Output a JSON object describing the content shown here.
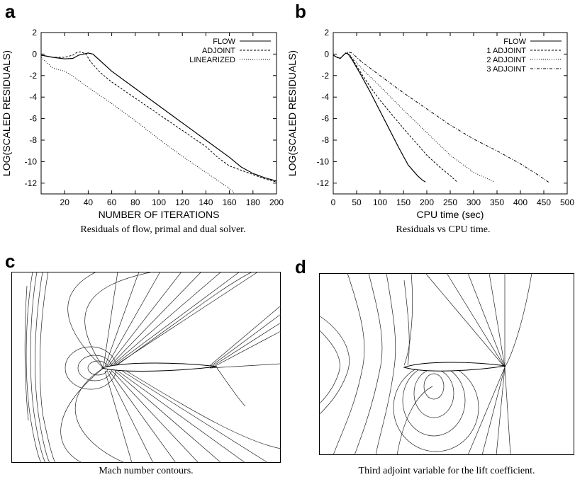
{
  "panels": {
    "a": {
      "letter": "a",
      "caption": "Residuals of flow, primal and dual solver."
    },
    "b": {
      "letter": "b",
      "caption": "Residuals vs CPU time."
    },
    "c": {
      "letter": "c",
      "caption": "Mach number contours."
    },
    "d": {
      "letter": "d",
      "caption": "Third adjoint variable for the lift coefficient."
    }
  },
  "chart_data": [
    {
      "type": "line",
      "xlabel": "NUMBER OF ITERATIONS",
      "ylabel": "LOG(SCALED RESIDUALS)",
      "xlim": [
        0,
        200
      ],
      "ylim": [
        -13,
        2
      ],
      "xticks": [
        20,
        40,
        60,
        80,
        100,
        120,
        140,
        160,
        180,
        200
      ],
      "yticks": [
        2,
        0,
        -2,
        -4,
        -6,
        -8,
        -10,
        -12
      ],
      "legend_position": "top-right",
      "series": [
        {
          "name": "FLOW",
          "style": "solid",
          "x": [
            0,
            10,
            20,
            27,
            32,
            36,
            40,
            44,
            48,
            55,
            60,
            80,
            100,
            120,
            140,
            160,
            170,
            180,
            190,
            200
          ],
          "y": [
            -0.1,
            -0.3,
            -0.45,
            -0.4,
            -0.1,
            0.0,
            0.1,
            0.0,
            -0.4,
            -1.1,
            -1.6,
            -3.2,
            -4.8,
            -6.4,
            -8.0,
            -9.6,
            -10.5,
            -11.1,
            -11.5,
            -11.8
          ]
        },
        {
          "name": "ADJOINT",
          "style": "dashed",
          "x": [
            0,
            10,
            20,
            27,
            31,
            34,
            38,
            42,
            50,
            60,
            80,
            100,
            120,
            140,
            150,
            160,
            170,
            180,
            190,
            200
          ],
          "y": [
            -0.1,
            -0.3,
            -0.3,
            -0.1,
            0.2,
            0.2,
            0.0,
            -0.7,
            -1.7,
            -2.6,
            -4.1,
            -5.6,
            -7.1,
            -8.6,
            -9.6,
            -10.4,
            -10.8,
            -11.2,
            -11.6,
            -11.9
          ]
        },
        {
          "name": "LINEARIZED",
          "style": "dotted",
          "x": [
            0,
            5,
            10,
            20,
            25,
            30,
            40,
            60,
            80,
            100,
            120,
            140,
            160,
            165
          ],
          "y": [
            -0.3,
            -0.8,
            -1.3,
            -1.6,
            -1.9,
            -2.3,
            -3.1,
            -4.6,
            -6.2,
            -7.9,
            -9.5,
            -11.0,
            -12.5,
            -13.0
          ]
        }
      ]
    },
    {
      "type": "line",
      "xlabel": "CPU time (sec)",
      "ylabel": "LOG(SCALED RESIDUALS)",
      "xlim": [
        0,
        500
      ],
      "ylim": [
        -13,
        2
      ],
      "xticks": [
        0,
        50,
        100,
        150,
        200,
        250,
        300,
        350,
        400,
        450,
        500
      ],
      "yticks": [
        2,
        0,
        -2,
        -4,
        -6,
        -8,
        -10,
        -12
      ],
      "legend_position": "top-right",
      "series": [
        {
          "name": "FLOW",
          "style": "solid",
          "x": [
            0,
            8,
            15,
            22,
            27,
            32,
            40,
            60,
            80,
            100,
            120,
            140,
            160,
            180,
            190,
            197
          ],
          "y": [
            -0.1,
            -0.3,
            -0.4,
            -0.1,
            0.1,
            0.0,
            -0.5,
            -2.0,
            -3.6,
            -5.3,
            -7.0,
            -8.7,
            -10.3,
            -11.3,
            -11.7,
            -11.9
          ]
        },
        {
          "name": "1 ADJOINT",
          "style": "dashed",
          "x": [
            0,
            8,
            15,
            22,
            27,
            32,
            40,
            60,
            80,
            100,
            150,
            200,
            230,
            250,
            265
          ],
          "y": [
            -0.1,
            -0.3,
            -0.4,
            -0.1,
            0.1,
            0.0,
            -0.4,
            -1.8,
            -3.1,
            -4.3,
            -6.9,
            -9.4,
            -10.6,
            -11.3,
            -11.9
          ]
        },
        {
          "name": "2 ADJOINT",
          "style": "dotted",
          "x": [
            0,
            8,
            15,
            22,
            27,
            32,
            40,
            60,
            100,
            150,
            200,
            250,
            300,
            330,
            345
          ],
          "y": [
            -0.1,
            -0.3,
            -0.4,
            -0.1,
            0.1,
            0.1,
            -0.3,
            -1.3,
            -3.0,
            -5.2,
            -7.3,
            -9.4,
            -11.0,
            -11.6,
            -11.9
          ]
        },
        {
          "name": "3 ADJOINT",
          "style": "dash-dot",
          "x": [
            0,
            8,
            15,
            22,
            27,
            32,
            40,
            60,
            100,
            150,
            200,
            250,
            300,
            350,
            400,
            440,
            460
          ],
          "y": [
            -0.1,
            -0.3,
            -0.4,
            -0.1,
            0.1,
            0.2,
            0.1,
            -0.7,
            -2.0,
            -3.6,
            -5.1,
            -6.6,
            -7.9,
            -9.0,
            -10.2,
            -11.3,
            -11.9
          ]
        }
      ]
    }
  ]
}
